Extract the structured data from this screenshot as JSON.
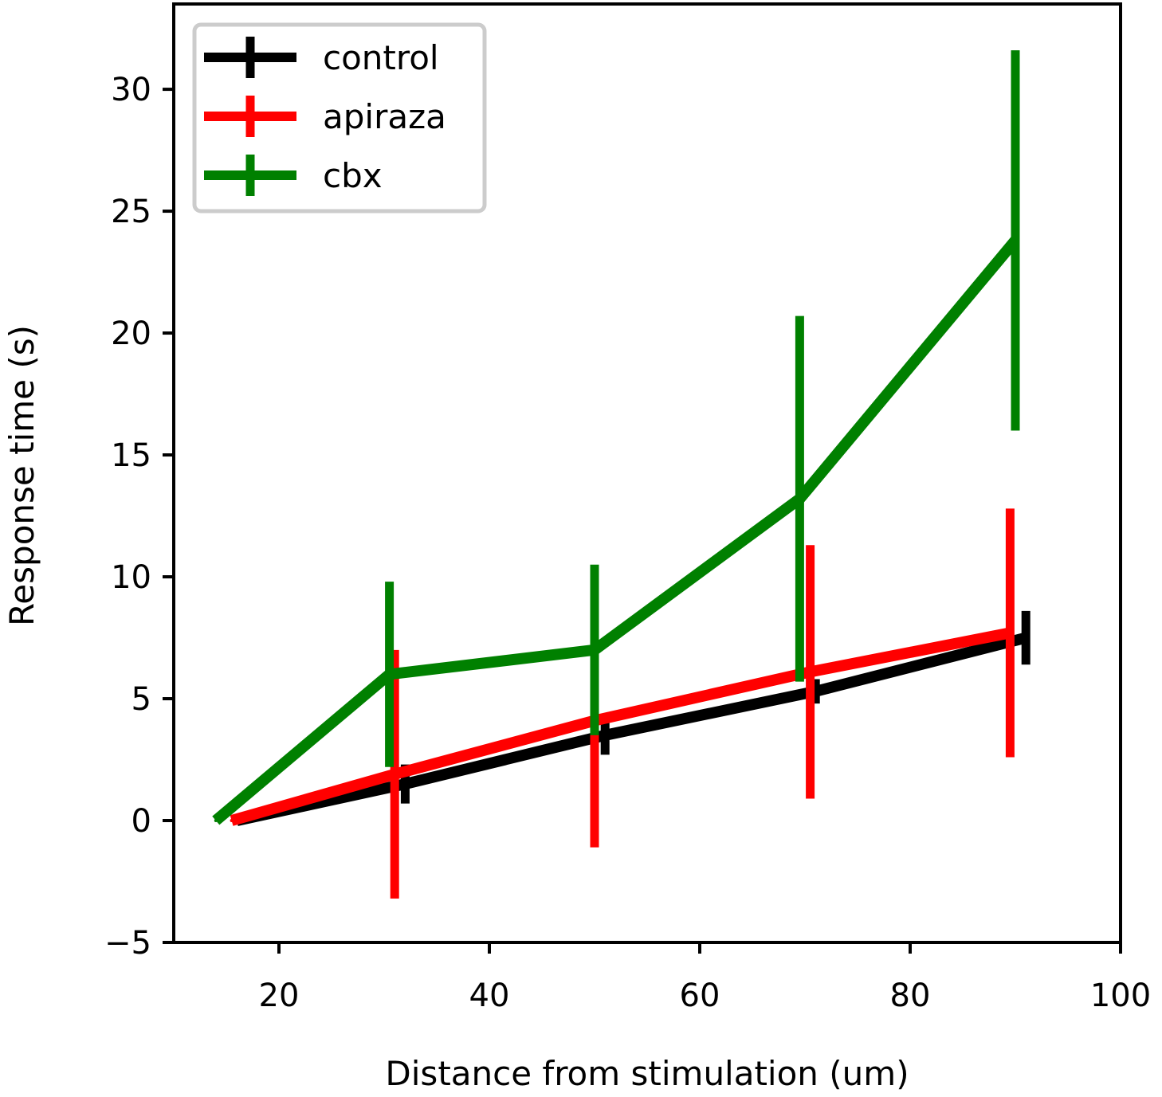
{
  "chart_data": {
    "type": "line",
    "title": "",
    "xlabel": "Distance from stimulation (um)",
    "ylabel": "Response time (s)",
    "xlim": [
      10,
      100
    ],
    "ylim": [
      -5,
      33.5
    ],
    "xticks": [
      20,
      40,
      60,
      80,
      100
    ],
    "yticks": [
      -5,
      0,
      5,
      10,
      15,
      20,
      25,
      30
    ],
    "xtick_labels": [
      "20",
      "40",
      "60",
      "80",
      "100"
    ],
    "ytick_labels": [
      "−5",
      "0",
      "5",
      "10",
      "15",
      "20",
      "25",
      "30"
    ],
    "grid": false,
    "legend_position": "top-left",
    "series": [
      {
        "name": "control",
        "color": "#000000",
        "x": [
          16,
          32,
          51,
          71,
          91
        ],
        "y": [
          0,
          1.5,
          3.5,
          5.3,
          7.5
        ],
        "err": [
          0,
          0.8,
          0.8,
          0.5,
          1.1
        ]
      },
      {
        "name": "apiraza",
        "color": "#ff0000",
        "x": [
          15.5,
          31,
          50,
          70.5,
          89.5
        ],
        "y": [
          0,
          1.9,
          4.1,
          6.1,
          7.7
        ],
        "err": [
          0,
          5.1,
          5.2,
          5.2,
          5.1
        ]
      },
      {
        "name": "cbx",
        "color": "#008000",
        "x": [
          14,
          30.5,
          50,
          69.5,
          90
        ],
        "y": [
          0,
          6.0,
          7.0,
          13.2,
          23.8
        ],
        "err": [
          0,
          3.8,
          3.5,
          7.5,
          7.8
        ]
      }
    ]
  }
}
